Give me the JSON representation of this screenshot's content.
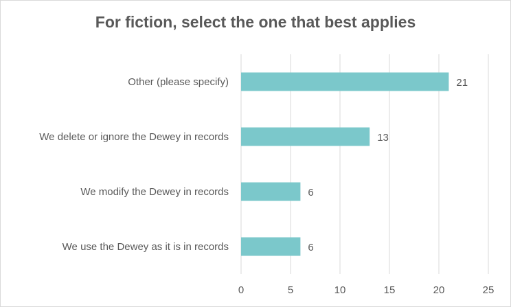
{
  "chart_data": {
    "type": "bar",
    "orientation": "horizontal",
    "title": "For fiction, select the one that best applies",
    "categories": [
      "Other (please specify)",
      "We delete or ignore the Dewey in records",
      "We modify the Dewey in records",
      "We use the Dewey as it is in records"
    ],
    "values": [
      21,
      13,
      6,
      6
    ],
    "xlim": [
      0,
      25
    ],
    "xticks": [
      0,
      5,
      10,
      15,
      20,
      25
    ],
    "grid": "vertical",
    "legend": "none",
    "bar_color": "#7BC8CB",
    "grid_color": "#d9d9d9"
  }
}
